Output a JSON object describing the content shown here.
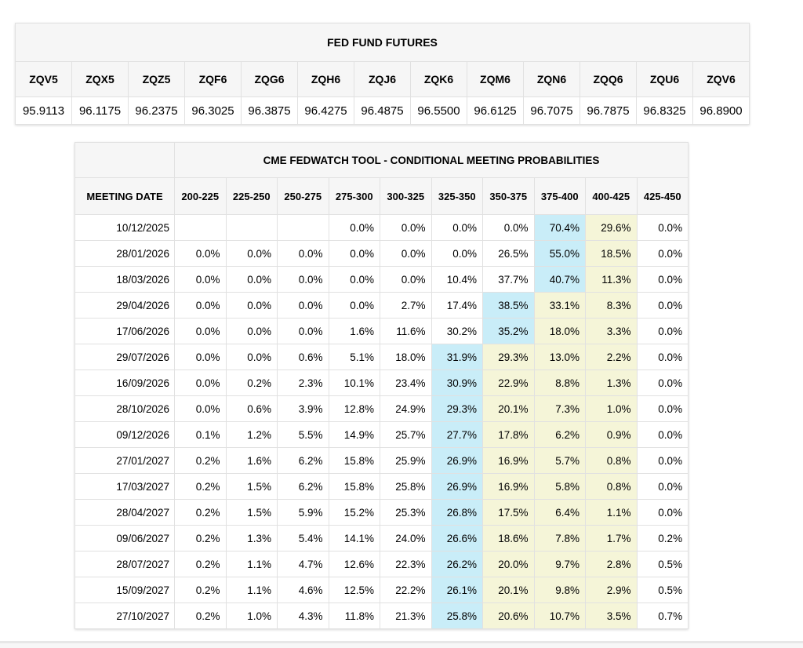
{
  "chart_data": [
    {
      "type": "table",
      "title": "FED FUND FUTURES",
      "columns": [
        "ZQV5",
        "ZQX5",
        "ZQZ5",
        "ZQF6",
        "ZQG6",
        "ZQH6",
        "ZQJ6",
        "ZQK6",
        "ZQM6",
        "ZQN6",
        "ZQQ6",
        "ZQU6",
        "ZQV6"
      ],
      "values": [
        "95.9113",
        "96.1175",
        "96.2375",
        "96.3025",
        "96.3875",
        "96.4275",
        "96.4875",
        "96.5500",
        "96.6125",
        "96.7075",
        "96.7875",
        "96.8325",
        "96.8900"
      ]
    },
    {
      "type": "table",
      "title": "CME FEDWATCH TOOL - CONDITIONAL MEETING PROBABILITIES",
      "row_header": "MEETING DATE",
      "columns": [
        "200-225",
        "225-250",
        "250-275",
        "275-300",
        "300-325",
        "325-350",
        "350-375",
        "375-400",
        "400-425",
        "425-450"
      ],
      "rows": [
        {
          "date": "10/12/2025",
          "values": [
            "",
            "",
            "",
            "0.0%",
            "0.0%",
            "0.0%",
            "0.0%",
            "70.4%",
            "29.6%",
            "0.0%"
          ],
          "highlight": [
            "",
            "",
            "",
            "",
            "",
            "",
            "",
            "c",
            "y",
            ""
          ]
        },
        {
          "date": "28/01/2026",
          "values": [
            "0.0%",
            "0.0%",
            "0.0%",
            "0.0%",
            "0.0%",
            "0.0%",
            "26.5%",
            "55.0%",
            "18.5%",
            "0.0%"
          ],
          "highlight": [
            "",
            "",
            "",
            "",
            "",
            "",
            "",
            "c",
            "y",
            ""
          ]
        },
        {
          "date": "18/03/2026",
          "values": [
            "0.0%",
            "0.0%",
            "0.0%",
            "0.0%",
            "0.0%",
            "10.4%",
            "37.7%",
            "40.7%",
            "11.3%",
            "0.0%"
          ],
          "highlight": [
            "",
            "",
            "",
            "",
            "",
            "",
            "",
            "c",
            "y",
            ""
          ]
        },
        {
          "date": "29/04/2026",
          "values": [
            "0.0%",
            "0.0%",
            "0.0%",
            "0.0%",
            "2.7%",
            "17.4%",
            "38.5%",
            "33.1%",
            "8.3%",
            "0.0%"
          ],
          "highlight": [
            "",
            "",
            "",
            "",
            "",
            "",
            "c",
            "y",
            "y",
            ""
          ]
        },
        {
          "date": "17/06/2026",
          "values": [
            "0.0%",
            "0.0%",
            "0.0%",
            "1.6%",
            "11.6%",
            "30.2%",
            "35.2%",
            "18.0%",
            "3.3%",
            "0.0%"
          ],
          "highlight": [
            "",
            "",
            "",
            "",
            "",
            "",
            "c",
            "y",
            "y",
            ""
          ]
        },
        {
          "date": "29/07/2026",
          "values": [
            "0.0%",
            "0.0%",
            "0.6%",
            "5.1%",
            "18.0%",
            "31.9%",
            "29.3%",
            "13.0%",
            "2.2%",
            "0.0%"
          ],
          "highlight": [
            "",
            "",
            "",
            "",
            "",
            "c",
            "y",
            "y",
            "y",
            ""
          ]
        },
        {
          "date": "16/09/2026",
          "values": [
            "0.0%",
            "0.2%",
            "2.3%",
            "10.1%",
            "23.4%",
            "30.9%",
            "22.9%",
            "8.8%",
            "1.3%",
            "0.0%"
          ],
          "highlight": [
            "",
            "",
            "",
            "",
            "",
            "c",
            "y",
            "y",
            "y",
            ""
          ]
        },
        {
          "date": "28/10/2026",
          "values": [
            "0.0%",
            "0.6%",
            "3.9%",
            "12.8%",
            "24.9%",
            "29.3%",
            "20.1%",
            "7.3%",
            "1.0%",
            "0.0%"
          ],
          "highlight": [
            "",
            "",
            "",
            "",
            "",
            "c",
            "y",
            "y",
            "y",
            ""
          ]
        },
        {
          "date": "09/12/2026",
          "values": [
            "0.1%",
            "1.2%",
            "5.5%",
            "14.9%",
            "25.7%",
            "27.7%",
            "17.8%",
            "6.2%",
            "0.9%",
            "0.0%"
          ],
          "highlight": [
            "",
            "",
            "",
            "",
            "",
            "c",
            "y",
            "y",
            "y",
            ""
          ]
        },
        {
          "date": "27/01/2027",
          "values": [
            "0.2%",
            "1.6%",
            "6.2%",
            "15.8%",
            "25.9%",
            "26.9%",
            "16.9%",
            "5.7%",
            "0.8%",
            "0.0%"
          ],
          "highlight": [
            "",
            "",
            "",
            "",
            "",
            "c",
            "y",
            "y",
            "y",
            ""
          ]
        },
        {
          "date": "17/03/2027",
          "values": [
            "0.2%",
            "1.5%",
            "6.2%",
            "15.8%",
            "25.8%",
            "26.9%",
            "16.9%",
            "5.8%",
            "0.8%",
            "0.0%"
          ],
          "highlight": [
            "",
            "",
            "",
            "",
            "",
            "c",
            "y",
            "y",
            "y",
            ""
          ]
        },
        {
          "date": "28/04/2027",
          "values": [
            "0.2%",
            "1.5%",
            "5.9%",
            "15.2%",
            "25.3%",
            "26.8%",
            "17.5%",
            "6.4%",
            "1.1%",
            "0.0%"
          ],
          "highlight": [
            "",
            "",
            "",
            "",
            "",
            "c",
            "y",
            "y",
            "y",
            ""
          ]
        },
        {
          "date": "09/06/2027",
          "values": [
            "0.2%",
            "1.3%",
            "5.4%",
            "14.1%",
            "24.0%",
            "26.6%",
            "18.6%",
            "7.8%",
            "1.7%",
            "0.2%"
          ],
          "highlight": [
            "",
            "",
            "",
            "",
            "",
            "c",
            "y",
            "y",
            "y",
            ""
          ]
        },
        {
          "date": "28/07/2027",
          "values": [
            "0.2%",
            "1.1%",
            "4.7%",
            "12.6%",
            "22.3%",
            "26.2%",
            "20.0%",
            "9.7%",
            "2.8%",
            "0.5%"
          ],
          "highlight": [
            "",
            "",
            "",
            "",
            "",
            "c",
            "y",
            "y",
            "y",
            ""
          ]
        },
        {
          "date": "15/09/2027",
          "values": [
            "0.2%",
            "1.1%",
            "4.6%",
            "12.5%",
            "22.2%",
            "26.1%",
            "20.1%",
            "9.8%",
            "2.9%",
            "0.5%"
          ],
          "highlight": [
            "",
            "",
            "",
            "",
            "",
            "c",
            "y",
            "y",
            "y",
            ""
          ]
        },
        {
          "date": "27/10/2027",
          "values": [
            "0.2%",
            "1.0%",
            "4.3%",
            "11.8%",
            "21.3%",
            "25.8%",
            "20.6%",
            "10.7%",
            "3.5%",
            "0.7%"
          ],
          "highlight": [
            "",
            "",
            "",
            "",
            "",
            "c",
            "y",
            "y",
            "y",
            ""
          ]
        }
      ]
    }
  ],
  "colors": {
    "highlight_cyan": "#c9edf8",
    "highlight_yellow": "#f5f5d8",
    "header_bg": "#f6f6f6",
    "border": "#e1e1e1",
    "text": "#000000"
  }
}
